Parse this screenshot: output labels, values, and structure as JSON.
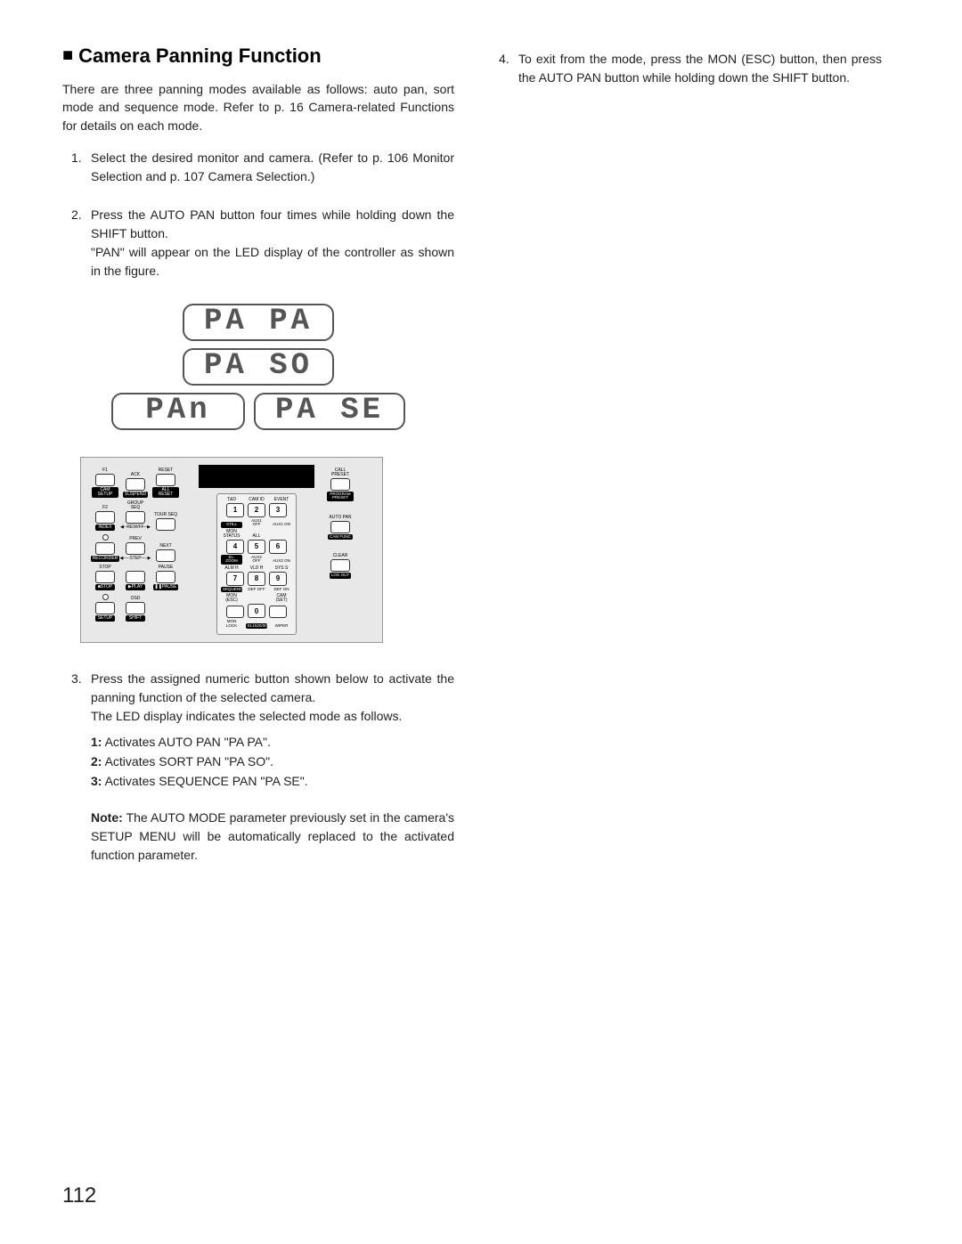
{
  "heading": "Camera Panning Function",
  "intro": "There are three panning modes available as follows: auto pan, sort mode and sequence mode. Refer to p. 16 Camera-related Functions for details on each mode.",
  "steps_left": [
    "Select the desired monitor and camera. (Refer to p. 106 Monitor Selection and p. 107 Camera Selection.)",
    "Press the AUTO PAN button four times while holding down the SHIFT button.\n\"PAN\" will appear on the LED display of the controller as shown in the figure.",
    "Press the assigned numeric button shown below to activate the panning function of the selected camera.\nThe LED display indicates the selected mode as follows."
  ],
  "step4": "To exit from the mode, press the MON (ESC) button, then press the AUTO PAN button while holding down the SHIFT button.",
  "modes": [
    {
      "num": "1:",
      "desc": "Activates AUTO PAN \"PA PA\"."
    },
    {
      "num": "2:",
      "desc": "Activates SORT PAN \"PA SO\"."
    },
    {
      "num": "3:",
      "desc": "Activates SEQUENCE PAN \"PA SE\"."
    }
  ],
  "note_label": "Note:",
  "note": "The AUTO MODE parameter previously set in the camera's SETUP MENU will be automatically replaced to the activated function parameter.",
  "led": {
    "pa_pa": "PA  PA",
    "pa_so": "PA  SO",
    "pa_se": "PA  SE",
    "pan_left": "   PAn"
  },
  "controller": {
    "row1": [
      {
        "top": "F1",
        "btn": "",
        "bot": "CAM SETUP"
      },
      {
        "top": "ACK",
        "btn": "",
        "bot": "SUSPEND"
      },
      {
        "top": "RESET",
        "btn": "",
        "bot": "ALL RESET"
      }
    ],
    "row2": [
      {
        "top": "F2",
        "btn": "",
        "bot": "INDEX",
        "black": true
      },
      {
        "top": "GROUP SEQ",
        "btn": "",
        "bot": "◀─REW/FF─▶",
        "black": false
      },
      {
        "top": "TOUR SEQ",
        "btn": "",
        "bot": "",
        "black": false
      }
    ],
    "row3": [
      {
        "top": "",
        "btn": "",
        "bot": "RECORDER",
        "black": true,
        "led": true
      },
      {
        "top": "PREV",
        "btn": "",
        "bot": "◀──STEP──▶",
        "black": false
      },
      {
        "top": "NEXT",
        "btn": "",
        "bot": "",
        "black": false
      }
    ],
    "row4": [
      {
        "top": "STOP",
        "btn": "",
        "bot": "■STOP",
        "black": true
      },
      {
        "top": "",
        "btn": "",
        "bot": "▶PLAY",
        "black": true
      },
      {
        "top": "PAUSE",
        "btn": "",
        "bot": "❚❚PAUSE",
        "black": true
      }
    ],
    "row5": [
      {
        "top": "",
        "btn": "",
        "bot": "SETUP",
        "black": true,
        "led": true
      },
      {
        "top": "OSD",
        "btn": "",
        "bot": "SHIFT",
        "black": true
      }
    ],
    "keypad": {
      "r1_top": [
        "T&D",
        "CAM ID",
        "EVENT"
      ],
      "r1": [
        "1",
        "2",
        "3"
      ],
      "r1_bot": [
        "STILL",
        "AUX1 OFF",
        "AUX1 ON"
      ],
      "r2_top": [
        "MON STATUS",
        "ALL"
      ],
      "r2": [
        "4",
        "5",
        "6"
      ],
      "r2_bot": [
        "EL-ZOOM",
        "AUX2 OFF",
        "AUX2 ON"
      ],
      "r3_top": [
        "ALM H",
        "VLD H",
        "SYS S"
      ],
      "r3": [
        "7",
        "8",
        "9"
      ],
      "r3_bot": [
        "SEQUENCE",
        "DEF OFF",
        "DEF ON"
      ],
      "r4_top": [
        "MON (ESC)",
        "",
        "CAM (SET)"
      ],
      "r4": [
        "",
        "0",
        ""
      ],
      "r4_bot": [
        "MON LOCK",
        "EL1520/30",
        "WIPER"
      ]
    },
    "right": [
      {
        "top": "CALL PRESET",
        "bot": "PROGRAM PRESET"
      },
      {
        "top": "AUTO PAN",
        "bot": "CAM FUNC"
      },
      {
        "top": "CLEAR",
        "bot": "LOG OUT"
      }
    ]
  },
  "page": "112"
}
